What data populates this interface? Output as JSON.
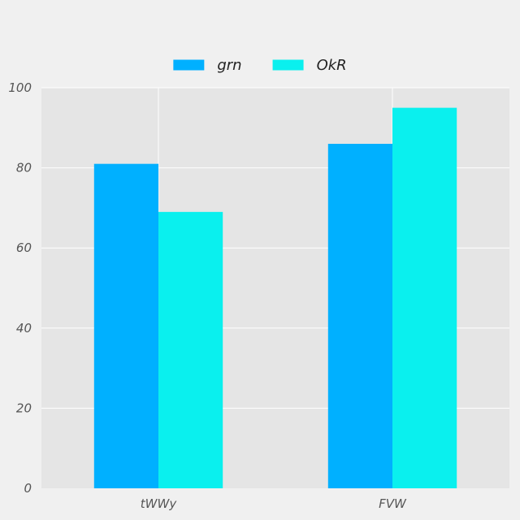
{
  "chart_data": {
    "type": "bar",
    "categories": [
      "tWWy",
      "FVW"
    ],
    "series": [
      {
        "name": "grn",
        "values": [
          81,
          86
        ],
        "color": "#00b0ff"
      },
      {
        "name": "OkR",
        "values": [
          69,
          95
        ],
        "color": "#0af0ee"
      }
    ],
    "ylim": [
      0,
      100
    ],
    "yticks": [
      0,
      20,
      40,
      60,
      80,
      100
    ],
    "grid": true,
    "legend": "top-center",
    "plot_background": "#e5e5e5",
    "page_background": "#f0f0f0"
  }
}
